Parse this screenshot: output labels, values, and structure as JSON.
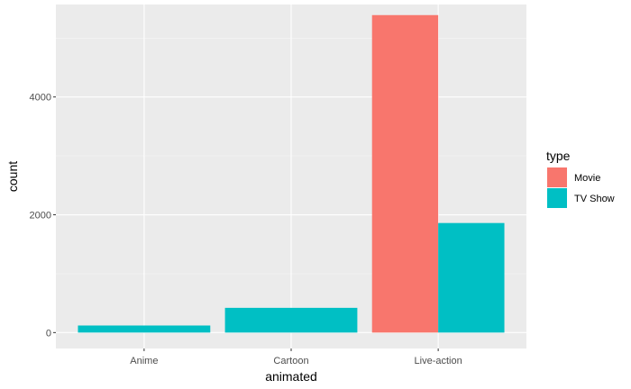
{
  "chart_data": {
    "type": "bar",
    "position": "dodge",
    "xlabel": "animated",
    "ylabel": "count",
    "categories": [
      "Anime",
      "Cartoon",
      "Live-action"
    ],
    "ylim": [
      -270,
      5570
    ],
    "yticks": [
      0,
      2000,
      4000
    ],
    "ytick_labels": [
      "0",
      "2000",
      "4000"
    ],
    "grid": true,
    "legend": {
      "title": "type",
      "placement": "right",
      "entries": [
        {
          "name": "Movie",
          "color": "#F8766D"
        },
        {
          "name": "TV Show",
          "color": "#00BFC4"
        }
      ]
    },
    "series": [
      {
        "name": "Movie",
        "color": "#F8766D",
        "values": [
          0,
          0,
          5390
        ]
      },
      {
        "name": "TV Show",
        "color": "#00BFC4",
        "values": [
          120,
          420,
          1860
        ]
      }
    ],
    "colors": {
      "panel_background": "#EBEBEB",
      "grid_major": "#FFFFFF",
      "grid_minor": "#F5F5F5"
    }
  }
}
